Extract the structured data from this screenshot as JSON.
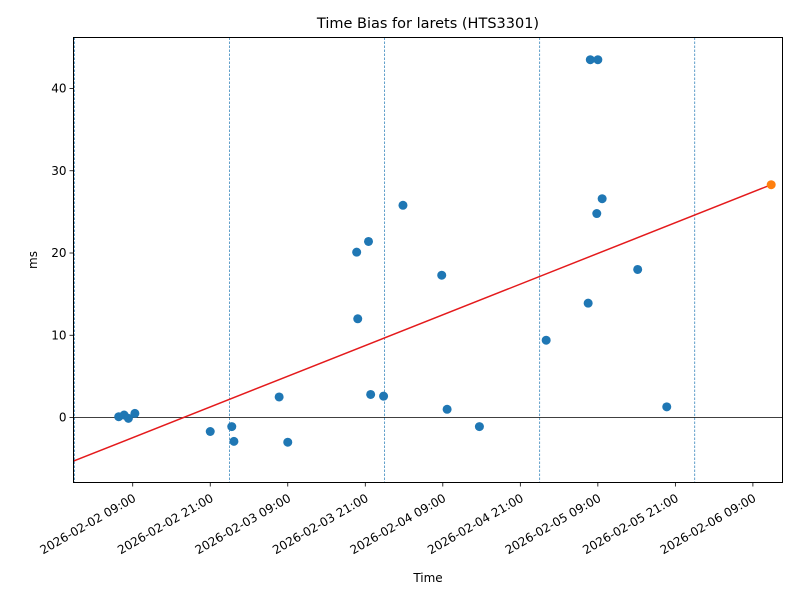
{
  "chart_data": {
    "type": "scatter",
    "title": "Time Bias for larets (HTS3301)",
    "xlabel": "Time",
    "ylabel": "ms",
    "x_tick_labels": [
      "2026-02-02 09:00",
      "2026-02-02 21:00",
      "2026-02-03 09:00",
      "2026-02-03 21:00",
      "2026-02-04 09:00",
      "2026-02-04 21:00",
      "2026-02-05 09:00",
      "2026-02-05 21:00",
      "2026-02-06 09:00"
    ],
    "x_ticks": [
      "2026-02-02T09:00",
      "2026-02-02T21:00",
      "2026-02-03T09:00",
      "2026-02-03T21:00",
      "2026-02-04T09:00",
      "2026-02-04T21:00",
      "2026-02-05T09:00",
      "2026-02-05T21:00",
      "2026-02-06T09:00"
    ],
    "y_ticks": [
      0,
      10,
      20,
      30,
      40
    ],
    "xlim": [
      "2026-02-01T23:50",
      "2026-02-06T13:35"
    ],
    "ylim": [
      -7.9,
      46.2
    ],
    "grid": false,
    "colors": {
      "points": "#1f77b4",
      "forecast": "#ff7f0e",
      "trend": "#e41a1c",
      "vlines": "#1f77b4",
      "zero_line": "#000000"
    },
    "series": [
      {
        "values": [
          {
            "x": "2026-02-02T06:50",
            "y": 0.1
          },
          {
            "x": "2026-02-02T07:40",
            "y": 0.3
          },
          {
            "x": "2026-02-02T08:20",
            "y": -0.1
          },
          {
            "x": "2026-02-02T09:20",
            "y": 0.5
          },
          {
            "x": "2026-02-02T21:00",
            "y": -1.7
          },
          {
            "x": "2026-02-03T00:20",
            "y": -1.1
          },
          {
            "x": "2026-02-03T00:40",
            "y": -2.9
          },
          {
            "x": "2026-02-03T07:40",
            "y": 2.5
          },
          {
            "x": "2026-02-03T09:00",
            "y": -3.0
          },
          {
            "x": "2026-02-03T19:40",
            "y": 20.1
          },
          {
            "x": "2026-02-03T19:50",
            "y": 12.0
          },
          {
            "x": "2026-02-03T21:30",
            "y": 21.4
          },
          {
            "x": "2026-02-03T21:50",
            "y": 2.8
          },
          {
            "x": "2026-02-03T23:50",
            "y": 2.6
          },
          {
            "x": "2026-02-04T02:50",
            "y": 25.8
          },
          {
            "x": "2026-02-04T08:50",
            "y": 17.3
          },
          {
            "x": "2026-02-04T09:40",
            "y": 1.0
          },
          {
            "x": "2026-02-04T14:40",
            "y": -1.1
          },
          {
            "x": "2026-02-05T01:00",
            "y": 9.4
          },
          {
            "x": "2026-02-05T07:30",
            "y": 13.9
          },
          {
            "x": "2026-02-05T07:50",
            "y": 43.5
          },
          {
            "x": "2026-02-05T08:50",
            "y": 24.8
          },
          {
            "x": "2026-02-05T09:00",
            "y": 43.5
          },
          {
            "x": "2026-02-05T09:40",
            "y": 26.6
          },
          {
            "x": "2026-02-05T15:10",
            "y": 18.0
          },
          {
            "x": "2026-02-05T19:40",
            "y": 1.3
          }
        ]
      },
      {
        "values": [
          {
            "x": "2026-02-06T11:50",
            "y": 28.3
          }
        ]
      }
    ],
    "trend_line": [
      {
        "x": "2026-02-01T23:50",
        "y": -5.3
      },
      {
        "x": "2026-02-06T11:50",
        "y": 28.3
      }
    ],
    "vertical_lines": [
      "2026-02-02T00:00",
      "2026-02-03T00:00",
      "2026-02-04T00:00",
      "2026-02-05T00:00",
      "2026-02-06T00:00"
    ]
  }
}
